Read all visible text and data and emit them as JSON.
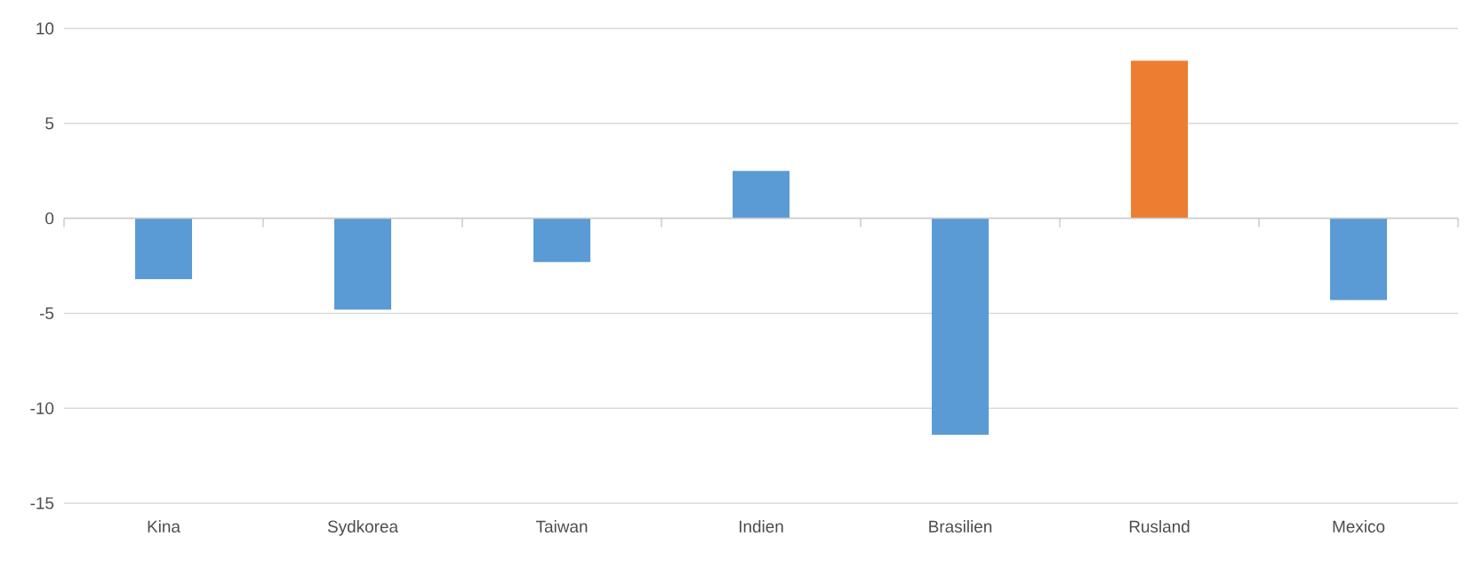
{
  "chart_data": {
    "type": "bar",
    "categories": [
      "Kina",
      "Sydkorea",
      "Taiwan",
      "Indien",
      "Brasilien",
      "Rusland",
      "Mexico"
    ],
    "values": [
      -3.2,
      -4.8,
      -2.3,
      2.5,
      -11.4,
      8.3,
      -4.3
    ],
    "colors": [
      "#5b9bd5",
      "#5b9bd5",
      "#5b9bd5",
      "#5b9bd5",
      "#5b9bd5",
      "#ed7d31",
      "#5b9bd5"
    ],
    "ylim": [
      -15,
      10
    ],
    "yticks": [
      -15,
      -10,
      -5,
      0,
      5,
      10
    ],
    "grid": "y"
  }
}
